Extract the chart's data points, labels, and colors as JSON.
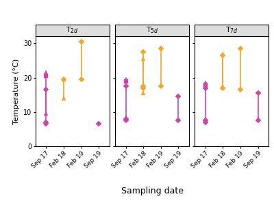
{
  "xlabel": "Sampling date",
  "ylabel": "Temperature (°C)",
  "panel_labels": [
    "T$_{2d}$",
    "T$_{5d}$",
    "T$_{7d}$"
  ],
  "ylim": [
    0,
    32
  ],
  "yticks": [
    0,
    10,
    20,
    30
  ],
  "orange": "#F5A623",
  "pink": "#CC44AA",
  "strip_bg": "#DEDEDE",
  "panels": {
    "T2d": [
      {
        "x": 0,
        "color": "pink",
        "marker": "D",
        "y": [
          6.5,
          7.0,
          16.5
        ],
        "line": true
      },
      {
        "x": 0,
        "color": "pink",
        "marker": "^",
        "y": [
          9.5,
          21.5
        ],
        "line": true
      },
      {
        "x": 0,
        "color": "pink",
        "marker": "s",
        "y": [
          20.5
        ],
        "line": false
      },
      {
        "x": 1,
        "color": "orange",
        "marker": "D",
        "y": [
          19.5
        ],
        "line": false
      },
      {
        "x": 1,
        "color": "orange",
        "marker": "^",
        "y": [
          14.0,
          19.5
        ],
        "line": true
      },
      {
        "x": 2,
        "color": "orange",
        "marker": "D",
        "y": [
          19.5,
          30.5
        ],
        "line": true
      },
      {
        "x": 3,
        "color": "pink",
        "marker": "D",
        "y": [
          6.5
        ],
        "line": false
      }
    ],
    "T5d": [
      {
        "x": 0,
        "color": "pink",
        "marker": "D",
        "y": [
          7.5,
          8.0,
          17.5
        ],
        "line": true
      },
      {
        "x": 0,
        "color": "pink",
        "marker": "^",
        "y": [
          19.0,
          19.5
        ],
        "line": true
      },
      {
        "x": 0,
        "color": "pink",
        "marker": "s",
        "y": [
          19.0
        ],
        "line": false
      },
      {
        "x": 1,
        "color": "orange",
        "marker": "D",
        "y": [
          17.0,
          17.5,
          27.5
        ],
        "line": true
      },
      {
        "x": 1,
        "color": "orange",
        "marker": "^",
        "y": [
          15.5,
          25.5
        ],
        "line": true
      },
      {
        "x": 2,
        "color": "orange",
        "marker": "D",
        "y": [
          17.5,
          28.5
        ],
        "line": true
      },
      {
        "x": 3,
        "color": "pink",
        "marker": "D",
        "y": [
          7.5,
          14.5
        ],
        "line": true
      }
    ],
    "T7d": [
      {
        "x": 0,
        "color": "pink",
        "marker": "D",
        "y": [
          7.0,
          7.5,
          17.0
        ],
        "line": true
      },
      {
        "x": 0,
        "color": "pink",
        "marker": "^",
        "y": [
          17.5,
          18.5
        ],
        "line": true
      },
      {
        "x": 0,
        "color": "pink",
        "marker": "s",
        "y": [
          18.0
        ],
        "line": false
      },
      {
        "x": 1,
        "color": "orange",
        "marker": "D",
        "y": [
          17.0,
          26.5
        ],
        "line": true
      },
      {
        "x": 1,
        "color": "orange",
        "marker": "^",
        "y": [
          17.5,
          27.0
        ],
        "line": true
      },
      {
        "x": 2,
        "color": "orange",
        "marker": "D",
        "y": [
          16.5,
          28.5
        ],
        "line": true
      },
      {
        "x": 3,
        "color": "pink",
        "marker": "D",
        "y": [
          7.5,
          15.5
        ],
        "line": true
      }
    ]
  },
  "x_labels": [
    "Sep 17",
    "Feb 18",
    "Feb 19",
    "Sep 19"
  ]
}
